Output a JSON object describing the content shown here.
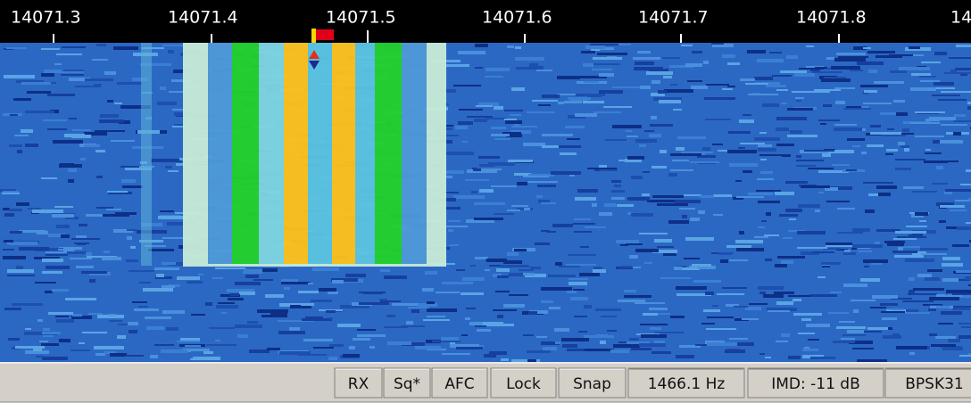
{
  "scale": {
    "labels": [
      "14071.3",
      "14071.4",
      "14071.5",
      "14071.6",
      "14071.7",
      "14071.8",
      "14"
    ]
  },
  "status_bar": {
    "buttons": [
      "RX",
      "Sq*",
      "AFC",
      "Lock",
      "Snap"
    ],
    "frequency": "1466.1 Hz",
    "imd": "IMD: -11 dB",
    "mode": "BPSK31"
  }
}
